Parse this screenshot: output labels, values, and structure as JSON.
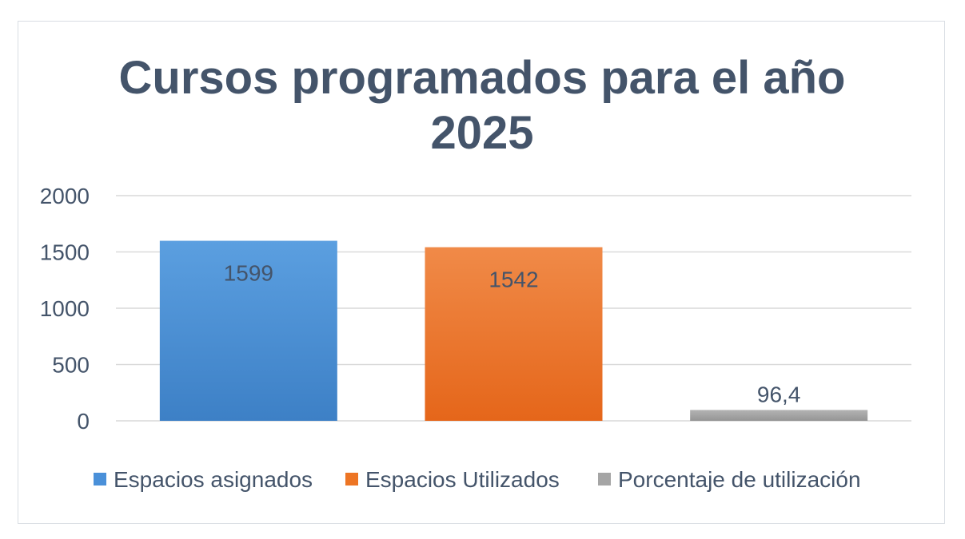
{
  "chart_data": {
    "type": "bar",
    "title_lines": [
      "Cursos programados para el año",
      "2025"
    ],
    "categories": [
      "Espacios asignados",
      "Espacios Utilizados",
      "Porcentaje de utilización"
    ],
    "values": [
      1599,
      1542,
      96.4
    ],
    "value_labels": [
      "1599",
      "1542",
      "96,4"
    ],
    "colors": [
      "#4a90d9",
      "#ed7524",
      "#a5a5a5"
    ],
    "xlabel": "",
    "ylabel": "",
    "ylim": [
      0,
      2000
    ],
    "yticks": [
      0,
      500,
      1000,
      1500,
      2000
    ],
    "ytick_labels": [
      "0",
      "500",
      "1000",
      "1500",
      "2000"
    ],
    "grid": true,
    "legend_position": "bottom",
    "legend": [
      "Espacios asignados",
      "Espacios Utilizados",
      "Porcentaje de utilización"
    ]
  }
}
